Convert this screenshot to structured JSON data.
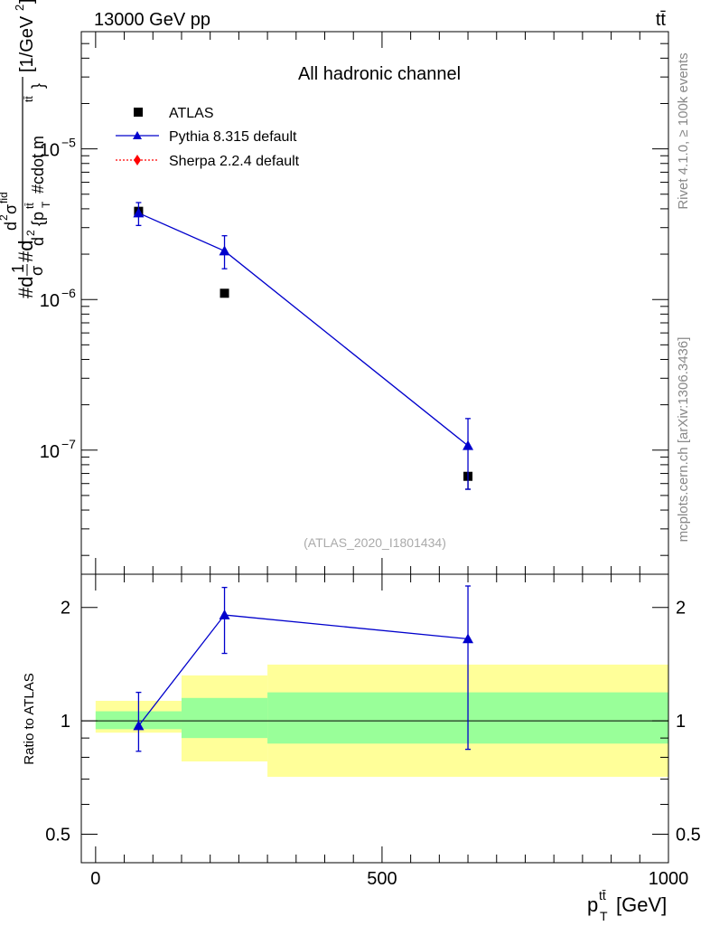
{
  "header": {
    "energy_label": "13000 GeV pp",
    "process_label": "tt̄"
  },
  "side_labels": {
    "rivet": "Rivet 4.1.0, ≥ 100k events",
    "mcplots": "mcplots.cern.ch [arXiv:1306.3436]"
  },
  "chart_data": [
    {
      "type": "scatter",
      "role": "main",
      "title": "All hadronic channel",
      "xlabel": "p_T^{tt̄} [GeV]",
      "ylabel": "#d#frac{1}{σ}#d{d^2σ^{fid}}{d^2 {p_T^{tt̄} #cdot m^{tt̄}}} [1/GeV^2]",
      "ylabel_parts": [
        "#d",
        "1",
        "σ",
        "#d",
        "d",
        "2",
        "σ",
        "fid",
        "d",
        "2",
        "{p",
        "T",
        "tt̄",
        "#cdot m",
        "tt̄",
        "}",
        "[1/GeV",
        "2",
        "]"
      ],
      "yscale": "log",
      "xlim": [
        -25,
        1000
      ],
      "ylim": [
        1.5e-08,
        6e-05
      ],
      "ytick_labels": [
        {
          "base": "10",
          "exp": "−5",
          "value": 1e-05
        },
        {
          "base": "10",
          "exp": "−6",
          "value": 1e-06
        },
        {
          "base": "10",
          "exp": "−7",
          "value": 1e-07
        }
      ],
      "annotation": "(ATLAS_2020_I1801434)",
      "legend": [
        "ATLAS",
        "Pythia 8.315 default",
        "Sherpa 2.2.4 default"
      ],
      "legend_position": "top-left",
      "bins": [
        [
          0,
          150
        ],
        [
          150,
          300
        ],
        [
          300,
          1000
        ]
      ],
      "series": [
        {
          "name": "ATLAS",
          "x": [
            75,
            225,
            650
          ],
          "y": [
            3.85e-06,
            1.1e-06,
            6.7e-08
          ],
          "yerr_low": [
            0,
            0,
            1.2e-08
          ],
          "yerr_high": [
            0,
            0,
            0
          ],
          "color": "#000000",
          "marker": "square"
        },
        {
          "name": "Pythia 8.315 default",
          "x": [
            75,
            225,
            650
          ],
          "y": [
            3.75e-06,
            2.1e-06,
            1.07e-07
          ],
          "yerr_low": [
            6.5e-07,
            5e-07,
            5.2e-08
          ],
          "yerr_high": [
            6.5e-07,
            5.5e-07,
            5.5e-08
          ],
          "color": "#0000cc",
          "marker": "triangle"
        },
        {
          "name": "Sherpa 2.2.4 default",
          "x": [],
          "y": [],
          "color": "#ff0000",
          "marker": "diamond"
        }
      ]
    },
    {
      "type": "scatter",
      "role": "ratio",
      "xlabel": "p_T^{tt̄} [GeV]",
      "ylabel": "Ratio to ATLAS",
      "yscale": "log",
      "xlim": [
        -25,
        1000
      ],
      "ylim": [
        0.42,
        2.45
      ],
      "xticks": [
        0,
        500,
        1000
      ],
      "xtick_labels": [
        "0",
        "500",
        "1000"
      ],
      "yticks": [
        0.5,
        1,
        2
      ],
      "ytick_labels": [
        "0.5",
        "1",
        "2"
      ],
      "bands": {
        "bins": [
          [
            0,
            150
          ],
          [
            150,
            300
          ],
          [
            300,
            1000
          ]
        ],
        "inner": [
          [
            0.95,
            1.06
          ],
          [
            0.9,
            1.15
          ],
          [
            0.87,
            1.19
          ]
        ],
        "outer": [
          [
            0.93,
            1.13
          ],
          [
            0.78,
            1.32
          ],
          [
            0.71,
            1.41
          ]
        ],
        "inner_color": "#99ff99",
        "outer_color": "#ffff99"
      },
      "series": [
        {
          "name": "Pythia 8.315 default",
          "x": [
            75,
            225,
            650
          ],
          "y": [
            0.97,
            1.91,
            1.65
          ],
          "yerr_low": [
            0.14,
            0.4,
            0.81
          ],
          "yerr_high": [
            0.22,
            0.35,
            0.63
          ],
          "color": "#0000cc",
          "marker": "triangle"
        }
      ]
    }
  ]
}
